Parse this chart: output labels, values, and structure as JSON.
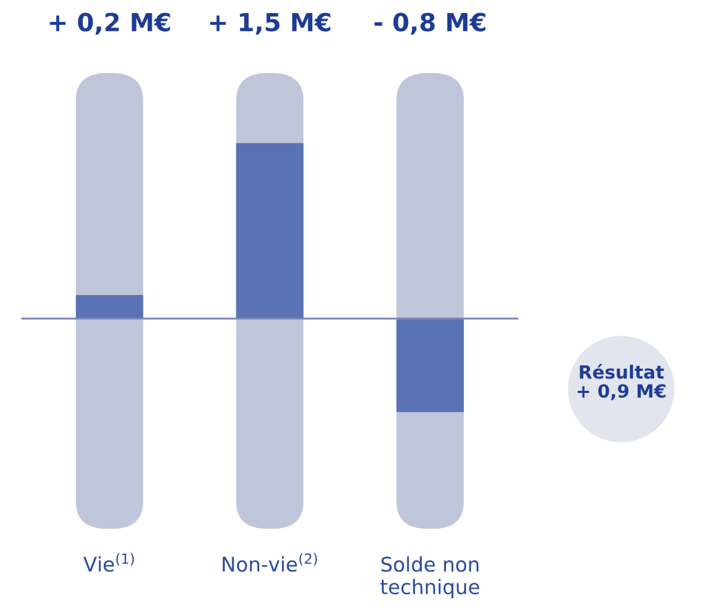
{
  "chart_data": {
    "type": "bar",
    "categories": [
      "Vie$^{(1)}$",
      "Non-vie$^{(2)}$",
      "Solde non technique"
    ],
    "values": [
      0.2,
      1.5,
      -0.8
    ],
    "value_labels": [
      "+ 0,2 M€",
      "+ 1,5 M€",
      "- 0,8 M€"
    ],
    "color": "#5a72b3",
    "ylim": [
      -1.8,
      2.1
    ],
    "ref_lines": [
      {
        "axis": "y",
        "value": 0,
        "color": "#7b86b8"
      }
    ],
    "annotations": [
      "Résultat\n+ 0,9 M€"
    ]
  }
}
